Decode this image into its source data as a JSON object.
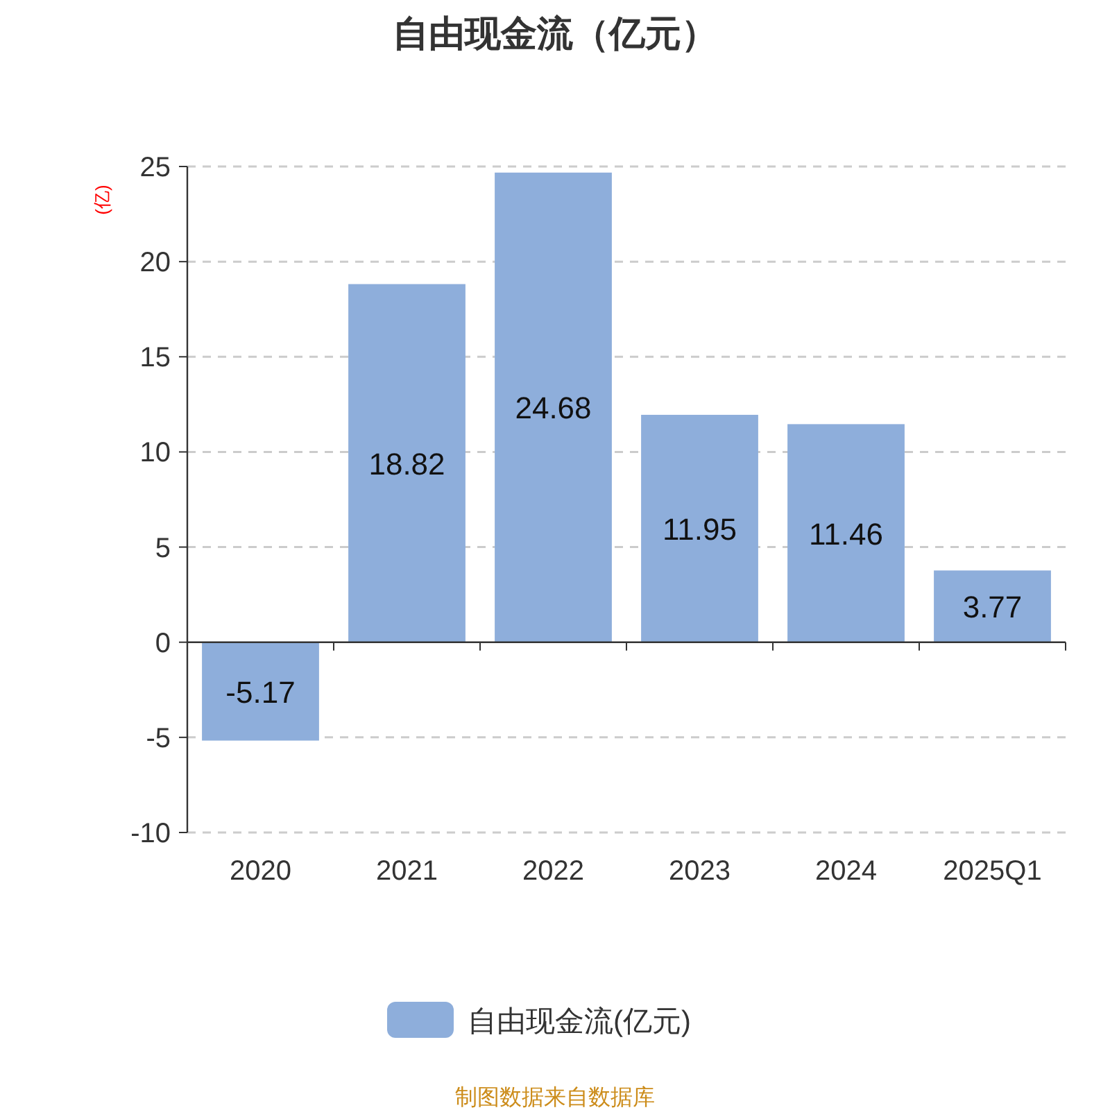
{
  "chart_data": {
    "type": "bar",
    "title": "自由现金流（亿元）",
    "ylabel": "(亿)",
    "categories": [
      "2020",
      "2021",
      "2022",
      "2023",
      "2024",
      "2025Q1"
    ],
    "series": [
      {
        "name": "自由现金流(亿元)",
        "color": "#8eaedb",
        "values": [
          -5.17,
          18.82,
          24.68,
          11.95,
          11.46,
          3.77
        ]
      }
    ],
    "ylim": [
      -10,
      25
    ],
    "yticks": [
      -10,
      -5,
      0,
      5,
      10,
      15,
      20,
      25
    ],
    "grid": "y",
    "legend": "bottom",
    "data_labels": true,
    "annotations": [
      "制图数据来自数据库"
    ]
  }
}
